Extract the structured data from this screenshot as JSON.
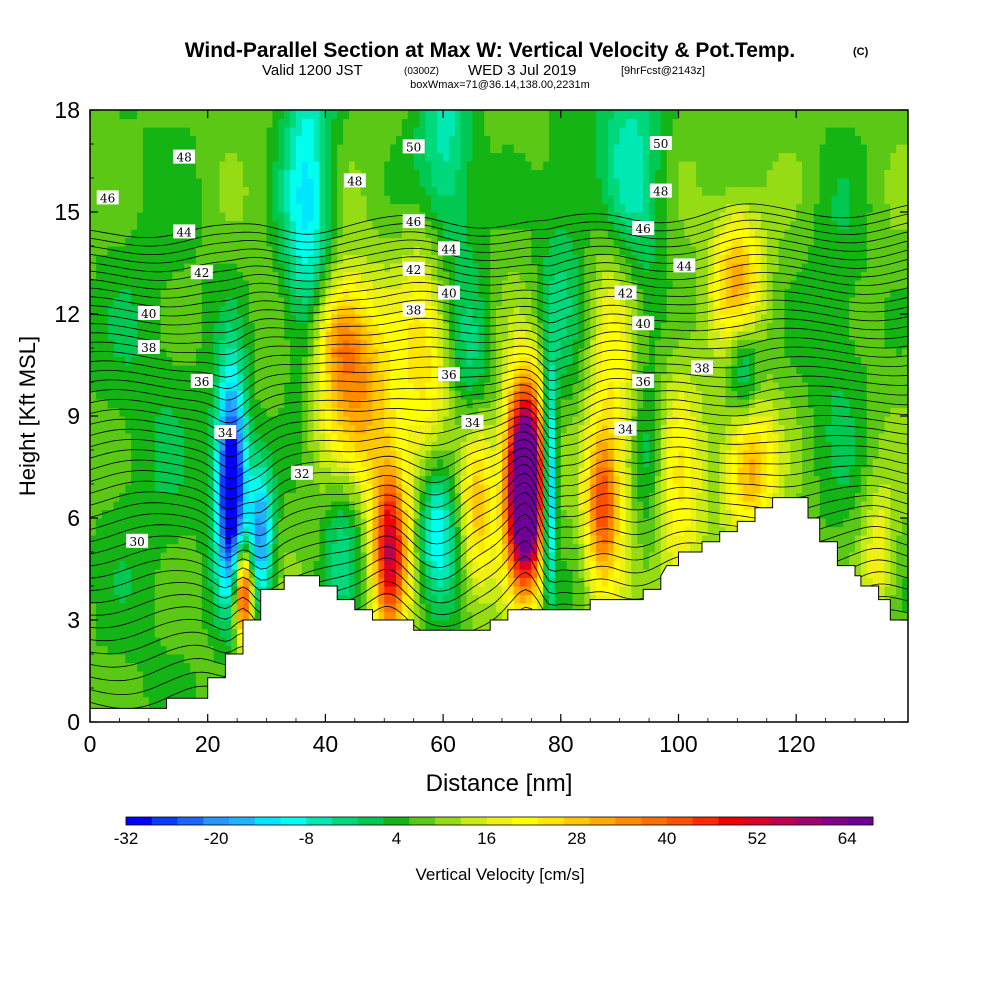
{
  "chart_data": {
    "type": "heatmap",
    "title": "Wind-Parallel Section at Max W: Vertical Velocity & Pot.Temp.",
    "title_tag": "(C)",
    "subtitle": {
      "valid": "Valid 1200 JST",
      "utc": "(0300Z)",
      "date": "WED 3 Jul 2019",
      "forecast": "[9hrFcst@2143z]",
      "boxmax": "boxWmax=71@36.14,138.00,2231m"
    },
    "xlabel": "Distance [nm]",
    "ylabel": "Height [Kft MSL]",
    "xlim": [
      0,
      139
    ],
    "ylim": [
      0,
      18
    ],
    "xticks": [
      "0",
      "20",
      "40",
      "60",
      "80",
      "100",
      "120"
    ],
    "yticks": [
      "0",
      "3",
      "6",
      "9",
      "12",
      "15",
      "18"
    ],
    "colorbar": {
      "label": "Vertical Velocity [cm/s]",
      "colors": [
        "#0000ff",
        "#0a3cff",
        "#1e64ff",
        "#2896ff",
        "#1eb4ff",
        "#00e6ff",
        "#00ffee",
        "#00e8b4",
        "#00d87c",
        "#00c850",
        "#14b414",
        "#5ac814",
        "#96dc14",
        "#c8ec14",
        "#f0f014",
        "#ffff00",
        "#ffe600",
        "#ffc800",
        "#ffaa00",
        "#ff8c00",
        "#ff6e00",
        "#ff5000",
        "#ff2800",
        "#f00000",
        "#dc0028",
        "#be0050",
        "#a00070",
        "#82008c",
        "#6e0096"
      ],
      "tick_labels": [
        "-32",
        "-20",
        "-8",
        "4",
        "16",
        "28",
        "40",
        "52",
        "64"
      ]
    },
    "terrain_kft": [
      [
        0,
        0.4
      ],
      [
        13,
        0.4
      ],
      [
        13,
        0.7
      ],
      [
        20,
        0.7
      ],
      [
        20,
        1.3
      ],
      [
        23,
        1.3
      ],
      [
        23,
        2.0
      ],
      [
        26,
        2.0
      ],
      [
        26,
        3.0
      ],
      [
        29,
        3.0
      ],
      [
        29,
        3.9
      ],
      [
        33,
        3.9
      ],
      [
        33,
        4.3
      ],
      [
        39,
        4.3
      ],
      [
        39,
        4.0
      ],
      [
        42,
        4.0
      ],
      [
        42,
        3.6
      ],
      [
        45,
        3.6
      ],
      [
        45,
        3.3
      ],
      [
        48,
        3.3
      ],
      [
        48,
        3.0
      ],
      [
        55,
        3.0
      ],
      [
        55,
        2.7
      ],
      [
        68,
        2.7
      ],
      [
        68,
        3.0
      ],
      [
        71,
        3.0
      ],
      [
        71,
        3.3
      ],
      [
        85,
        3.3
      ],
      [
        85,
        3.6
      ],
      [
        94,
        3.6
      ],
      [
        94,
        3.9
      ],
      [
        97,
        3.9
      ],
      [
        97,
        4.3
      ],
      [
        98,
        4.6
      ],
      [
        100,
        4.6
      ],
      [
        100,
        5.0
      ],
      [
        104,
        5.0
      ],
      [
        104,
        5.3
      ],
      [
        107,
        5.3
      ],
      [
        107,
        5.6
      ],
      [
        110,
        5.6
      ],
      [
        110,
        5.9
      ],
      [
        113,
        5.9
      ],
      [
        113,
        6.3
      ],
      [
        116,
        6.3
      ],
      [
        116,
        6.6
      ],
      [
        122,
        6.6
      ],
      [
        122,
        6.0
      ],
      [
        124,
        6.0
      ],
      [
        124,
        5.3
      ],
      [
        127,
        5.3
      ],
      [
        127,
        4.6
      ],
      [
        130,
        4.6
      ],
      [
        130,
        4.3
      ],
      [
        131,
        4.3
      ],
      [
        131,
        4.0
      ],
      [
        134,
        4.0
      ],
      [
        134,
        3.6
      ],
      [
        136,
        3.6
      ],
      [
        136,
        3.0
      ],
      [
        139,
        3.0
      ],
      [
        139,
        2.3
      ]
    ],
    "theta_contours": [
      {
        "value": 30,
        "label_x": 8,
        "label_y": 5.3
      },
      {
        "value": 32,
        "label_x": 36,
        "label_y": 7.3
      },
      {
        "value": 34,
        "label_x": 23,
        "label_y": 8.5
      },
      {
        "value": 34,
        "label_x": 65,
        "label_y": 8.8
      },
      {
        "value": 34,
        "label_x": 91,
        "label_y": 8.6
      },
      {
        "value": 36,
        "label_x": 19,
        "label_y": 10.0
      },
      {
        "value": 36,
        "label_x": 61,
        "label_y": 10.2
      },
      {
        "value": 36,
        "label_x": 94,
        "label_y": 10.0
      },
      {
        "value": 38,
        "label_x": 10,
        "label_y": 11.0
      },
      {
        "value": 38,
        "label_x": 55,
        "label_y": 12.1
      },
      {
        "value": 38,
        "label_x": 104,
        "label_y": 10.4
      },
      {
        "value": 40,
        "label_x": 10,
        "label_y": 12.0
      },
      {
        "value": 40,
        "label_x": 61,
        "label_y": 12.6
      },
      {
        "value": 40,
        "label_x": 94,
        "label_y": 11.7
      },
      {
        "value": 42,
        "label_x": 19,
        "label_y": 13.2
      },
      {
        "value": 42,
        "label_x": 55,
        "label_y": 13.3
      },
      {
        "value": 42,
        "label_x": 91,
        "label_y": 12.6
      },
      {
        "value": 44,
        "label_x": 16,
        "label_y": 14.4
      },
      {
        "value": 44,
        "label_x": 61,
        "label_y": 13.9
      },
      {
        "value": 44,
        "label_x": 101,
        "label_y": 13.4
      },
      {
        "value": 46,
        "label_x": 3,
        "label_y": 15.4
      },
      {
        "value": 46,
        "label_x": 55,
        "label_y": 14.7
      },
      {
        "value": 46,
        "label_x": 94,
        "label_y": 14.5
      },
      {
        "value": 48,
        "label_x": 16,
        "label_y": 16.6
      },
      {
        "value": 48,
        "label_x": 45,
        "label_y": 15.9
      },
      {
        "value": 48,
        "label_x": 97,
        "label_y": 15.6
      },
      {
        "value": 50,
        "label_x": 55,
        "label_y": 16.9
      },
      {
        "value": 50,
        "label_x": 97,
        "label_y": 17.0
      }
    ],
    "w_features": [
      {
        "x": 74,
        "y": 7.0,
        "sx": 2.3,
        "sy": 2.0,
        "w": 88
      },
      {
        "x": 74,
        "y": 6.5,
        "sx": 0.9,
        "sy": 0.9,
        "w": 20
      },
      {
        "x": 51,
        "y": 5.0,
        "sx": 2.0,
        "sy": 1.8,
        "w": 45
      },
      {
        "x": 26,
        "y": 3.8,
        "sx": 1.1,
        "sy": 1.0,
        "w": 48
      },
      {
        "x": 87,
        "y": 6.3,
        "sx": 2.0,
        "sy": 1.6,
        "w": 30
      },
      {
        "x": 112,
        "y": 7.5,
        "sx": 3.0,
        "sy": 1.4,
        "w": 25
      },
      {
        "x": 45,
        "y": 9.5,
        "sx": 5.0,
        "sy": 2.2,
        "w": 26
      },
      {
        "x": 66,
        "y": 6.5,
        "sx": 2.0,
        "sy": 1.8,
        "w": 22
      },
      {
        "x": 110,
        "y": 13.0,
        "sx": 3.0,
        "sy": 1.5,
        "w": 24
      },
      {
        "x": 42,
        "y": 11.5,
        "sx": 3.0,
        "sy": 1.2,
        "w": 18
      },
      {
        "x": 57,
        "y": 11.0,
        "sx": 3.0,
        "sy": 3.0,
        "w": 16
      },
      {
        "x": 89,
        "y": 11.0,
        "sx": 3.0,
        "sy": 4.0,
        "w": 16
      },
      {
        "x": 100,
        "y": 6.5,
        "sx": 3.0,
        "sy": 3.0,
        "w": 14
      },
      {
        "x": 24,
        "y": 7.0,
        "sx": 1.8,
        "sy": 2.2,
        "w": -50
      },
      {
        "x": 29,
        "y": 5.5,
        "sx": 1.5,
        "sy": 1.5,
        "w": -28
      },
      {
        "x": 78,
        "y": 7.0,
        "sx": 0.9,
        "sy": 2.2,
        "w": -40
      },
      {
        "x": 59,
        "y": 5.8,
        "sx": 2.2,
        "sy": 1.6,
        "w": -22
      },
      {
        "x": 43,
        "y": 6.0,
        "sx": 2.5,
        "sy": 2.0,
        "w": -14
      },
      {
        "x": 37,
        "y": 15.0,
        "sx": 3.0,
        "sy": 4.0,
        "w": -20
      },
      {
        "x": 60,
        "y": 16.5,
        "sx": 3.5,
        "sy": 2.5,
        "w": -16
      },
      {
        "x": 91,
        "y": 16.0,
        "sx": 4.0,
        "sy": 3.0,
        "w": -18
      },
      {
        "x": 111,
        "y": 10.5,
        "sx": 2.0,
        "sy": 1.2,
        "w": -16
      },
      {
        "x": 95,
        "y": 8.0,
        "sx": 2.0,
        "sy": 2.0,
        "w": -10
      },
      {
        "x": 65,
        "y": 10.5,
        "sx": 2.5,
        "sy": 2.0,
        "w": -10
      },
      {
        "x": 80,
        "y": 13.0,
        "sx": 3.0,
        "sy": 3.0,
        "w": -8
      },
      {
        "x": 127,
        "y": 11.0,
        "sx": 4.0,
        "sy": 4.0,
        "w": -6
      },
      {
        "x": 134,
        "y": 5.0,
        "sx": 2.0,
        "sy": 1.5,
        "w": 12
      },
      {
        "x": 10,
        "y": 9.0,
        "sx": 8.0,
        "sy": 6.0,
        "w": -5
      }
    ]
  }
}
